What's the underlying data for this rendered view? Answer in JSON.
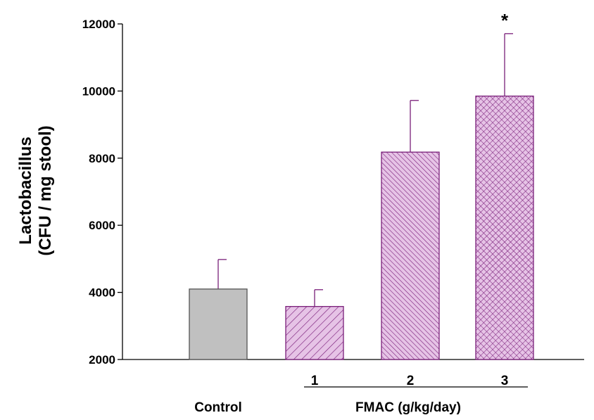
{
  "chart_data": {
    "type": "bar",
    "ylabel_line1": "Lactobacillus",
    "ylabel_line2": "(CFU / mg stool)",
    "ylim": [
      2000,
      12000
    ],
    "yticks": [
      "2000",
      "4000",
      "6000",
      "8000",
      "10000",
      "12000"
    ],
    "categories": [
      "Control",
      "1",
      "2",
      "3"
    ],
    "group_label": "FMAC (g/kg/day)",
    "values": [
      4100,
      3580,
      8180,
      9850
    ],
    "errors": [
      880,
      500,
      1540,
      1860
    ],
    "significance": [
      "",
      "",
      "",
      "*"
    ],
    "colors": {
      "control_fill": "#c0c0c0",
      "treatment_fill": "#e6c3e6",
      "hatch": "#7a1f7a",
      "error_bar": "#7a1f7a"
    },
    "patterns": [
      "solid",
      "diagonal-sparse",
      "diagonal-dense",
      "crosshatch"
    ]
  }
}
